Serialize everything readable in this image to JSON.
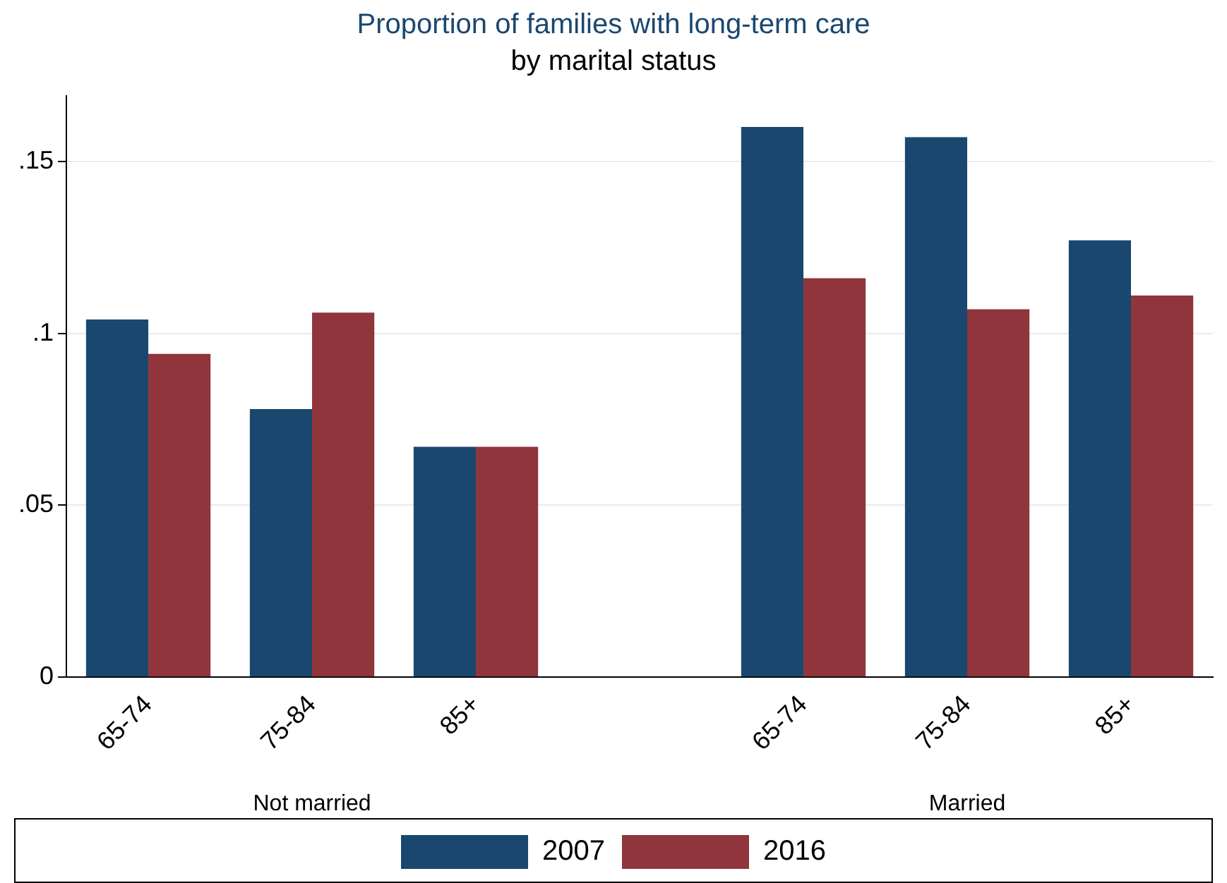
{
  "chart_data": {
    "type": "bar",
    "title": "Proportion of families with long-term care",
    "subtitle": "by marital status",
    "categories": [
      "65-74",
      "75-84",
      "85+",
      null,
      "65-74",
      "75-84",
      "85+"
    ],
    "series": [
      {
        "name": "2007",
        "color": "#1a476f",
        "values": [
          0.104,
          0.078,
          0.067,
          null,
          0.16,
          0.157,
          0.127
        ]
      },
      {
        "name": "2016",
        "color": "#90353b",
        "values": [
          0.094,
          0.106,
          0.067,
          null,
          0.116,
          0.107,
          0.111
        ]
      }
    ],
    "ylim": [
      0,
      0.169
    ],
    "yticks": [
      {
        "value": 0,
        "label": "0"
      },
      {
        "value": 0.05,
        "label": ".05"
      },
      {
        "value": 0.1,
        "label": ".1"
      },
      {
        "value": 0.15,
        "label": ".15"
      }
    ],
    "grid": "y",
    "legend": "bottom",
    "annotations": [
      "Not married",
      "Married"
    ]
  }
}
